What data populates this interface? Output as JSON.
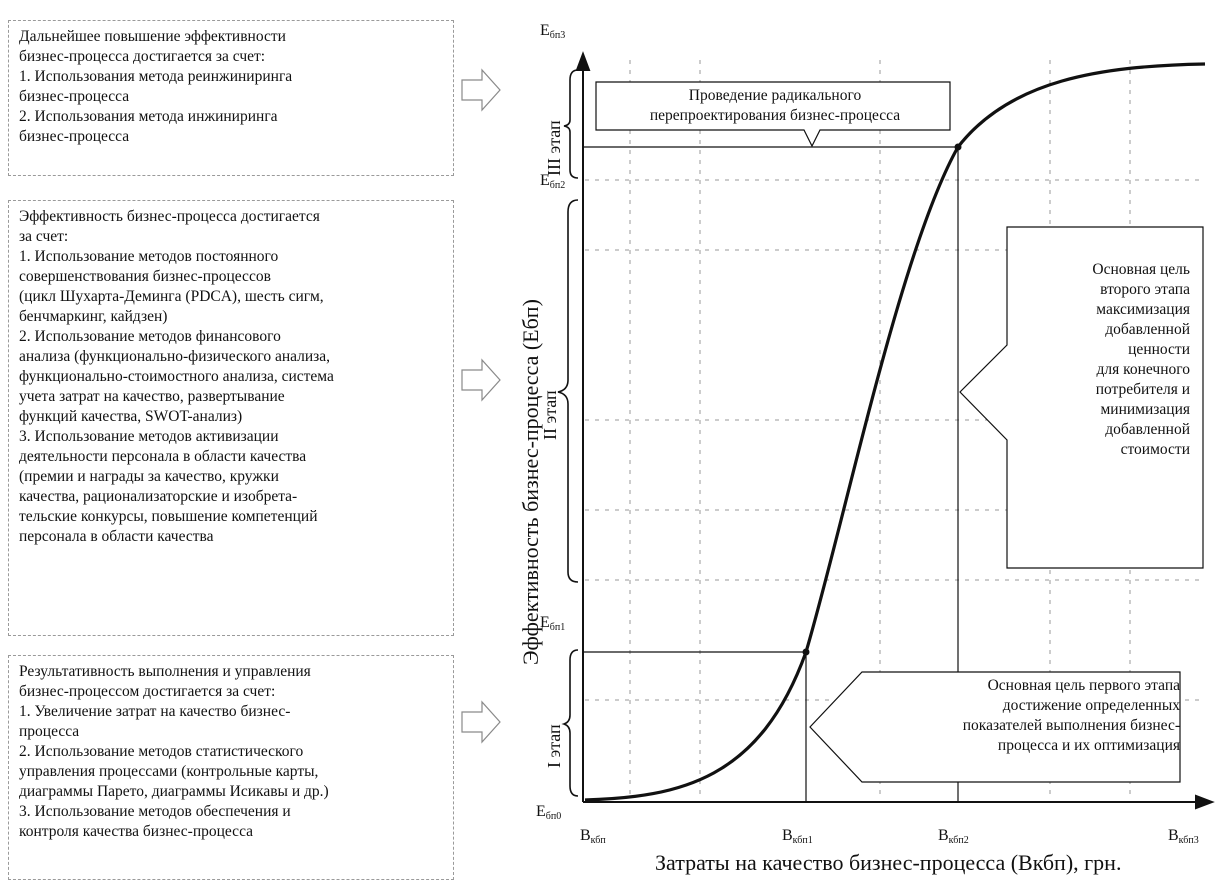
{
  "left_boxes": {
    "stage3": {
      "head": "Дальнейшее повышение эффективности\nбизнес-процесса достигается за счет:",
      "items": [
        "1. Использования метода реинжиниринга\nбизнес-процесса",
        "2. Использования метода инжиниринга\nбизнес-процесса"
      ]
    },
    "stage2": {
      "head": "Эффективность бизнес-процесса достигается\nза счет:",
      "items": [
        "1. Использование методов постоянного\nсовершенствования бизнес-процессов\n(цикл Шухарта-Деминга (PDCA), шесть сигм,\nбенчмаркинг, кайдзен)",
        "2. Использование методов финансового\nанализа (функционально-физического анализа,\nфункционально-стоимостного анализа, система\nучета затрат на качество, развертывание\nфункций качества, SWOT-анализ)",
        "3. Использование методов активизации\nдеятельности персонала в области качества\n(премии и награды за качество, кружки\nкачества, рационализаторские и изобрета-\nтельские конкурсы, повышение компетенций\nперсонала в области качества"
      ]
    },
    "stage1": {
      "head": "Результативность выполнения и управления\nбизнес-процессом достигается за счет:",
      "items": [
        "1. Увеличение затрат на качество бизнес-\nпроцесса",
        "2. Использование методов статистического\nуправления процессами (контрольные карты,\nдиаграммы Парето, диаграммы Исикавы и др.)",
        "3. Использование методов обеспечения и\nконтроля качества бизнес-процесса"
      ]
    }
  },
  "callouts": {
    "radical": "Проведение радикального\nперепроектирования бизнес-процесса",
    "goal2": "Основная цель\nвторого этапа\nмаксимизация\nдобавленной\nценности\nдля конечного\nпотребителя и\nминимизация\nдобавленной\nстоимости",
    "goal1": "Основная цель первого этапа\nдостижение определенных\nпоказателей выполнения бизнес-\nпроцесса и их оптимизация"
  },
  "axes": {
    "x_title": "Затраты на качество бизнес-процесса (Вкбп), грн.",
    "y_title": "Эффективность бизнес-процесса (Ебп)",
    "x_ticks": [
      {
        "main": "В",
        "sub": "кбп"
      },
      {
        "main": "В",
        "sub": "кбп1"
      },
      {
        "main": "В",
        "sub": "кбп2"
      },
      {
        "main": "В",
        "sub": "кбп3"
      }
    ],
    "y_ticks": [
      {
        "main": "Е",
        "sub": "бп0"
      },
      {
        "main": "Е",
        "sub": "бп1"
      },
      {
        "main": "Е",
        "sub": "бп2"
      },
      {
        "main": "Е",
        "sub": "бп3"
      }
    ]
  },
  "stages": {
    "stage1": "I этап",
    "stage2": "II этап",
    "stage3": "III этап"
  },
  "colors": {
    "curve": "#111111",
    "grid": "#9a9a9a"
  }
}
